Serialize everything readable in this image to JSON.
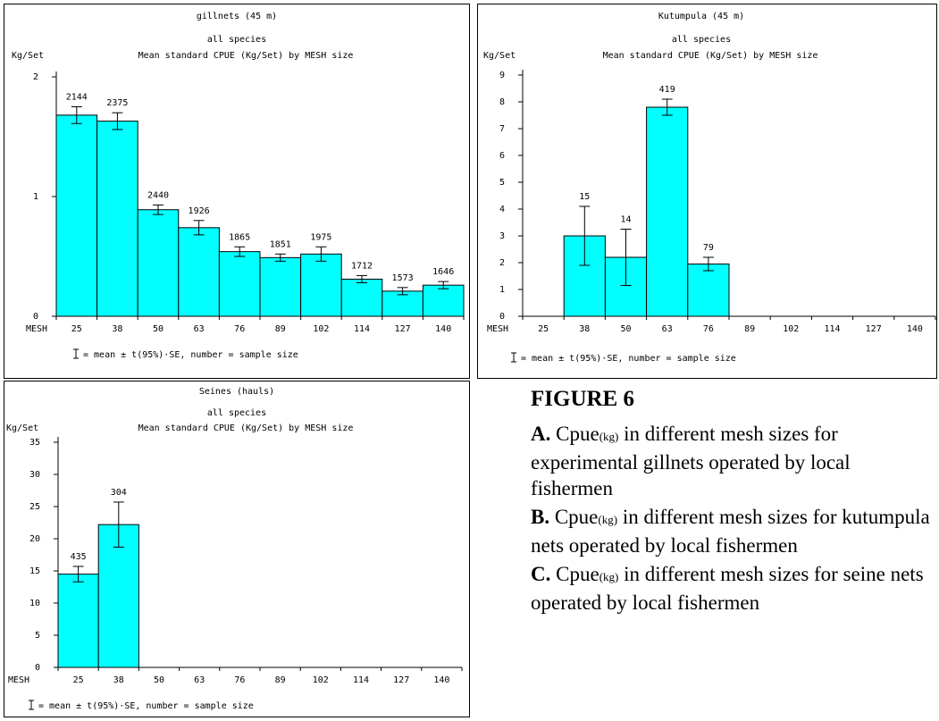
{
  "figure": {
    "title": "FIGURE 6",
    "items": [
      {
        "letter": "A.",
        "prefix": "Cpue",
        "sub": "(kg)",
        "text": " in different mesh sizes for experimental gillnets operated by local fishermen"
      },
      {
        "letter": "B.",
        "prefix": "Cpue",
        "sub": "(kg)",
        "text": " in different mesh sizes for kutumpula nets operated by local fishermen"
      },
      {
        "letter": "C.",
        "prefix": "Cpue",
        "sub": "(kg)",
        "text": " in different mesh sizes for seine nets operated by local fishermen"
      }
    ]
  },
  "chart_data": [
    {
      "type": "bar",
      "title": "gillnets (45 m)",
      "subtitle": "all species",
      "chart_title": "Mean standard CPUE (Kg/Set) by MESH size",
      "ylabel": "Kg/Set",
      "xlabel": "MESH",
      "categories": [
        "25",
        "38",
        "50",
        "63",
        "76",
        "89",
        "102",
        "114",
        "127",
        "140"
      ],
      "values": [
        1.68,
        1.63,
        0.89,
        0.74,
        0.54,
        0.49,
        0.52,
        0.31,
        0.21,
        0.26
      ],
      "error": [
        0.07,
        0.07,
        0.04,
        0.06,
        0.04,
        0.03,
        0.06,
        0.03,
        0.03,
        0.03
      ],
      "sample_size": [
        "2144",
        "2375",
        "2440",
        "1926",
        "1865",
        "1851",
        "1975",
        "1712",
        "1573",
        "1646"
      ],
      "ylim": [
        0,
        2
      ],
      "yticks": [
        "0",
        "1",
        "2"
      ],
      "footnote": "= mean ± t(95%)·SE, number = sample size"
    },
    {
      "type": "bar",
      "title": "Kutumpula (45 m)",
      "subtitle": "all species",
      "chart_title": "Mean standard CPUE (Kg/Set) by MESH size",
      "ylabel": "Kg/Set",
      "xlabel": "MESH",
      "categories": [
        "25",
        "38",
        "50",
        "63",
        "76",
        "89",
        "102",
        "114",
        "127",
        "140"
      ],
      "values": [
        null,
        3.0,
        2.2,
        7.8,
        1.95,
        null,
        null,
        null,
        null,
        null
      ],
      "error": [
        null,
        1.1,
        1.05,
        0.3,
        0.25,
        null,
        null,
        null,
        null,
        null
      ],
      "sample_size": [
        "",
        "15",
        "14",
        "419",
        "79",
        "",
        "",
        "",
        "",
        ""
      ],
      "ylim": [
        0,
        9
      ],
      "yticks": [
        "0",
        "1",
        "2",
        "3",
        "4",
        "5",
        "6",
        "7",
        "8",
        "9"
      ],
      "footnote": "= mean ± t(95%)·SE, number = sample size"
    },
    {
      "type": "bar",
      "title": "Seines (hauls)",
      "subtitle": "all species",
      "chart_title": "Mean standard CPUE (Kg/Set) by MESH size",
      "ylabel": "Kg/Set",
      "xlabel": "MESH",
      "categories": [
        "25",
        "38",
        "50",
        "63",
        "76",
        "89",
        "102",
        "114",
        "127",
        "140"
      ],
      "values": [
        14.5,
        22.2,
        null,
        null,
        null,
        null,
        null,
        null,
        null,
        null
      ],
      "error": [
        1.2,
        3.5,
        null,
        null,
        null,
        null,
        null,
        null,
        null,
        null
      ],
      "sample_size": [
        "435",
        "304",
        "",
        "",
        "",
        "",
        "",
        "",
        "",
        ""
      ],
      "ylim": [
        0,
        35
      ],
      "yticks": [
        "0",
        "5",
        "10",
        "15",
        "20",
        "25",
        "30",
        "35"
      ],
      "footnote": "= mean ± t(95%)·SE, number = sample size"
    }
  ]
}
